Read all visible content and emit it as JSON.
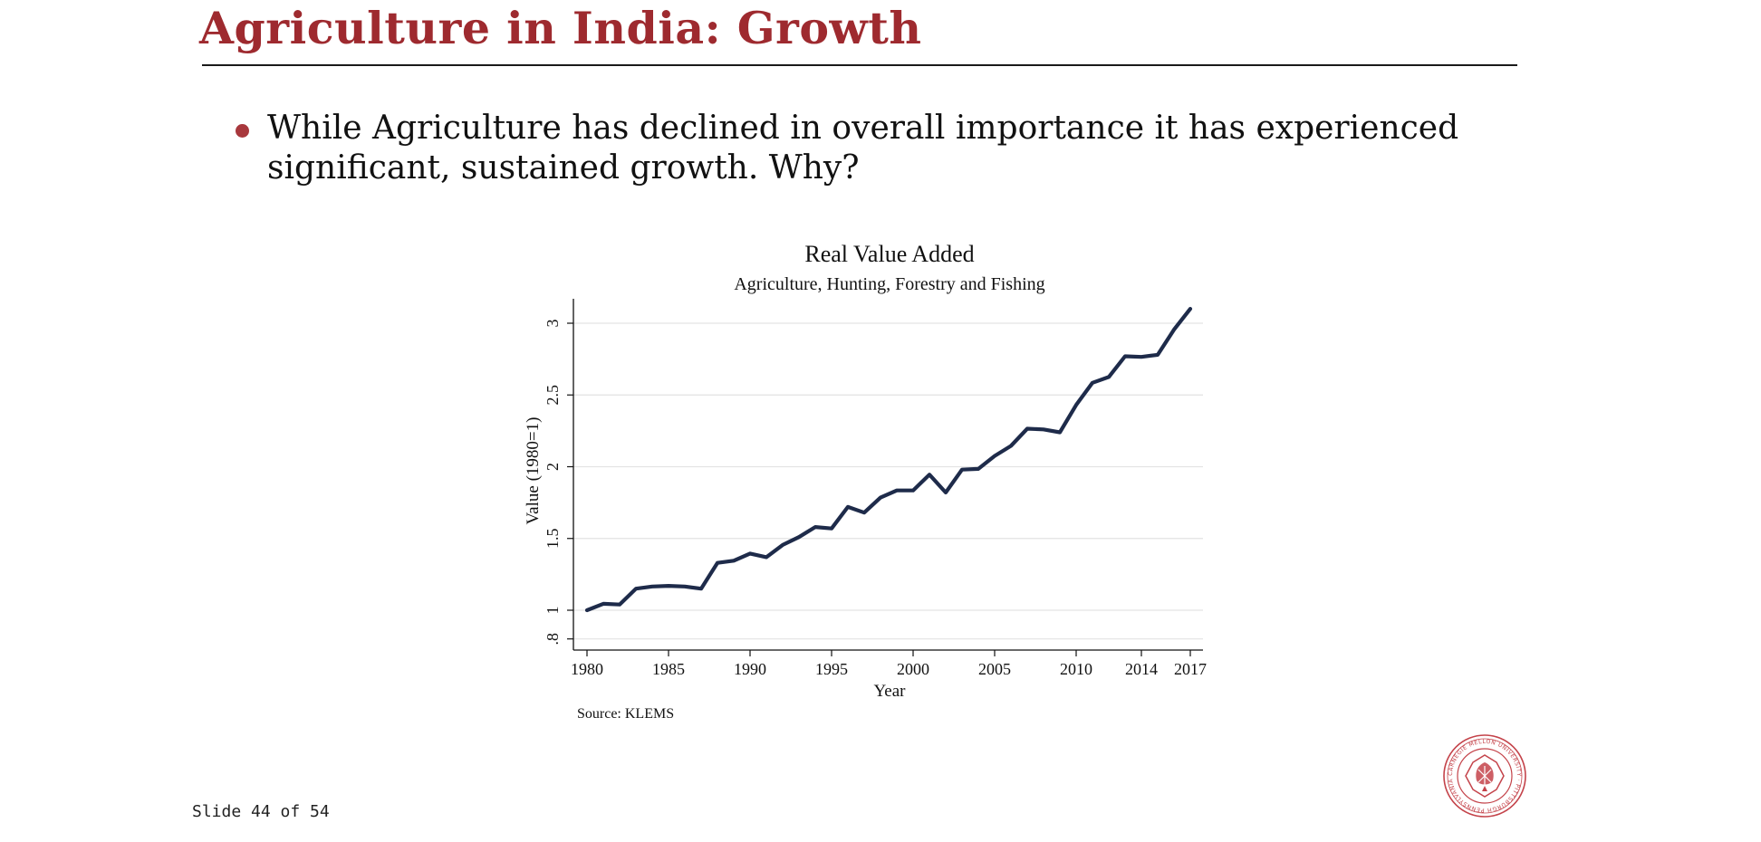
{
  "slide": {
    "title": "Agriculture in India: Growth",
    "bullet": "While Agriculture has declined in overall importance it has experienced significant, sustained growth. Why?",
    "number_label": "Slide 44 of 54",
    "accent_color": "#9e2a2f",
    "logo_icon": "carnegie-mellon-university-seal-icon",
    "logo_text": "CARNEGIE MELLON UNIVERSITY · PITTSBURGH PENNSYLVANIA 1900"
  },
  "chart_data": {
    "type": "line",
    "title": "Real Value Added",
    "subtitle": "Agriculture, Hunting, Forestry and Fishing",
    "xlabel": "Year",
    "ylabel": "Value (1980=1)",
    "source": "Source: KLEMS",
    "xlim": [
      1980,
      2017
    ],
    "ylim": [
      0.8,
      3.1
    ],
    "x_ticks": [
      1980,
      1985,
      1990,
      1995,
      2000,
      2005,
      2010,
      2014,
      2017
    ],
    "y_ticks": [
      {
        "value": 0.8,
        "label": ".8"
      },
      {
        "value": 1,
        "label": "1"
      },
      {
        "value": 1.5,
        "label": "1.5"
      },
      {
        "value": 2,
        "label": "2"
      },
      {
        "value": 2.5,
        "label": "2.5"
      },
      {
        "value": 3,
        "label": "3"
      }
    ],
    "grid": true,
    "line_color": "#1e2b4a",
    "series": [
      {
        "x": [
          1980,
          1981,
          1982,
          1983,
          1984,
          1985,
          1986,
          1987,
          1988,
          1989,
          1990,
          1991,
          1992,
          1993,
          1994,
          1995,
          1996,
          1997,
          1998,
          1999,
          2000,
          2001,
          2002,
          2003,
          2004,
          2005,
          2006,
          2007,
          2008,
          2009,
          2010,
          2011,
          2012,
          2013,
          2014,
          2015,
          2016,
          2017
        ],
        "values": [
          1.0,
          1.045,
          1.04,
          1.15,
          1.165,
          1.17,
          1.165,
          1.15,
          1.33,
          1.345,
          1.395,
          1.37,
          1.455,
          1.51,
          1.58,
          1.57,
          1.72,
          1.68,
          1.785,
          1.835,
          1.835,
          1.945,
          1.82,
          1.98,
          1.985,
          2.075,
          2.145,
          2.265,
          2.26,
          2.24,
          2.43,
          2.585,
          2.625,
          2.77,
          2.765,
          2.78,
          2.955,
          3.1
        ]
      }
    ]
  }
}
